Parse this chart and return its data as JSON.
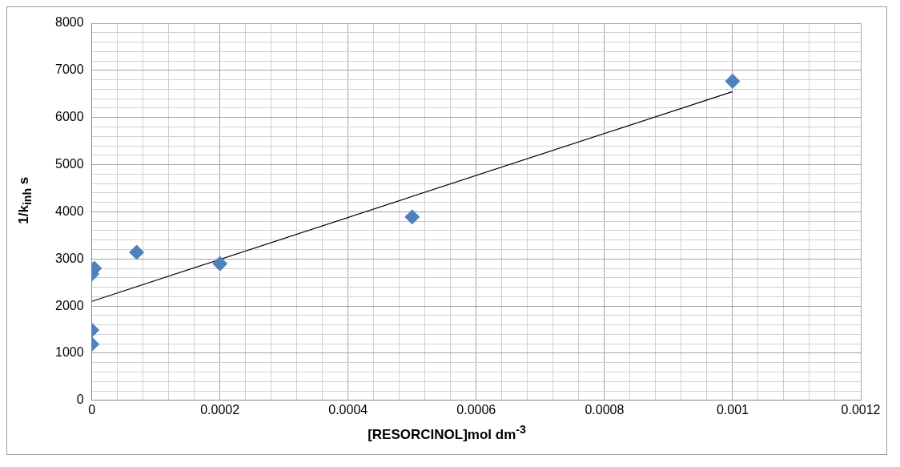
{
  "chart_data": {
    "type": "scatter",
    "xlabel": "[RESORCINOL]mol dm$^{-3}$",
    "ylabel": "1/k$_{inh}$ s",
    "xlim": [
      0,
      0.0012
    ],
    "ylim": [
      0,
      8000
    ],
    "xticks": [
      0,
      {
        "value": 4e-05,
        "label": null
      },
      {
        "value": 8e-05,
        "label": null
      },
      {
        "value": 0.00012,
        "label": null
      },
      {
        "value": 0.00016,
        "label": null
      },
      0.0002,
      {
        "value": 0.00024,
        "label": null
      },
      {
        "value": 0.00028,
        "label": null
      },
      {
        "value": 0.00032,
        "label": null
      },
      {
        "value": 0.00036,
        "label": null
      },
      0.0004,
      {
        "value": 0.00044,
        "label": null
      },
      {
        "value": 0.00048,
        "label": null
      },
      {
        "value": 0.00052,
        "label": null
      },
      {
        "value": 0.00056,
        "label": null
      },
      0.0006,
      {
        "value": 0.00064,
        "label": null
      },
      {
        "value": 0.00068,
        "label": null
      },
      {
        "value": 0.00072,
        "label": null
      },
      {
        "value": 0.00076,
        "label": null
      },
      0.0008,
      {
        "value": 0.00084,
        "label": null
      },
      {
        "value": 0.00088,
        "label": null
      },
      {
        "value": 0.00092,
        "label": null
      },
      {
        "value": 0.00096,
        "label": null
      },
      0.001,
      {
        "value": 0.00104,
        "label": null
      },
      {
        "value": 0.00108,
        "label": null
      },
      {
        "value": 0.00112,
        "label": null
      },
      {
        "value": 0.00116,
        "label": null
      },
      0.0012
    ],
    "yticks": [
      0,
      {
        "value": 200,
        "label": null
      },
      {
        "value": 400,
        "label": null
      },
      {
        "value": 600,
        "label": null
      },
      {
        "value": 800,
        "label": null
      },
      1000,
      {
        "value": 1200,
        "label": null
      },
      {
        "value": 1400,
        "label": null
      },
      {
        "value": 1600,
        "label": null
      },
      {
        "value": 1800,
        "label": null
      },
      2000,
      {
        "value": 2200,
        "label": null
      },
      {
        "value": 2400,
        "label": null
      },
      {
        "value": 2600,
        "label": null
      },
      {
        "value": 2800,
        "label": null
      },
      3000,
      {
        "value": 3200,
        "label": null
      },
      {
        "value": 3400,
        "label": null
      },
      {
        "value": 3600,
        "label": null
      },
      {
        "value": 3800,
        "label": null
      },
      4000,
      {
        "value": 4200,
        "label": null
      },
      {
        "value": 4400,
        "label": null
      },
      {
        "value": 4600,
        "label": null
      },
      {
        "value": 4800,
        "label": null
      },
      5000,
      {
        "value": 5200,
        "label": null
      },
      {
        "value": 5400,
        "label": null
      },
      {
        "value": 5600,
        "label": null
      },
      {
        "value": 5800,
        "label": null
      },
      6000,
      {
        "value": 6200,
        "label": null
      },
      {
        "value": 6400,
        "label": null
      },
      {
        "value": 6600,
        "label": null
      },
      {
        "value": 6800,
        "label": null
      },
      7000,
      {
        "value": 7200,
        "label": null
      },
      {
        "value": 7400,
        "label": null
      },
      {
        "value": 7600,
        "label": null
      },
      {
        "value": 7800,
        "label": null
      },
      8000
    ],
    "grid": true,
    "legend": false,
    "marker": "diamond",
    "series": [
      {
        "type": "scatter",
        "color": "#4f81bd",
        "x": [
          0,
          0,
          0,
          4e-06,
          7e-05,
          0.0002,
          0.0005,
          0.001
        ],
        "values": [
          1190,
          1490,
          2680,
          2800,
          3140,
          2900,
          3890,
          6770
        ]
      },
      {
        "type": "line",
        "color": "#000000",
        "marker": "none",
        "x": [
          0,
          0.001
        ],
        "values": [
          2100,
          6550
        ]
      }
    ]
  }
}
